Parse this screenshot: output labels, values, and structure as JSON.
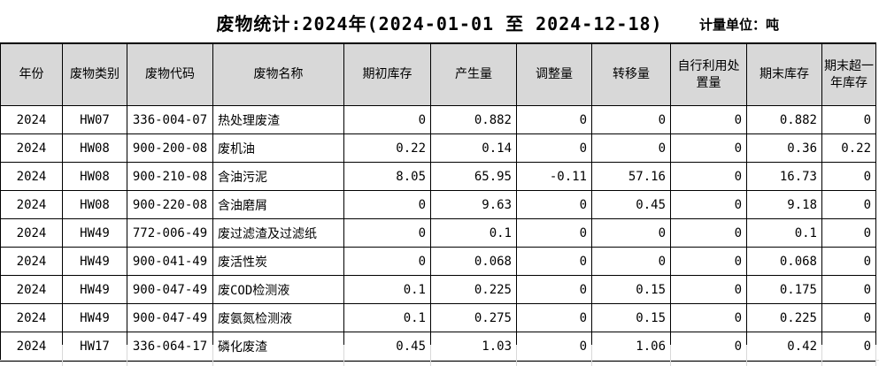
{
  "title": "废物统计:2024年(2024-01-01 至 2024-12-18)",
  "unit_label": "计量单位：吨",
  "table": {
    "columns": [
      "年份",
      "废物类别",
      "废物代码",
      "废物名称",
      "期初库存",
      "产生量",
      "调整量",
      "转移量",
      "自行利用处置量",
      "期末库存",
      "期末超一年库存"
    ],
    "rows": [
      [
        "2024",
        "HW07",
        "336-004-07",
        "热处理废渣",
        "0",
        "0.882",
        "0",
        "0",
        "0",
        "0.882",
        "0"
      ],
      [
        "2024",
        "HW08",
        "900-200-08",
        "废机油",
        "0.22",
        "0.14",
        "0",
        "0",
        "0",
        "0.36",
        "0.22"
      ],
      [
        "2024",
        "HW08",
        "900-210-08",
        "含油污泥",
        "8.05",
        "65.95",
        "-0.11",
        "57.16",
        "0",
        "16.73",
        "0"
      ],
      [
        "2024",
        "HW08",
        "900-220-08",
        "含油磨屑",
        "0",
        "9.63",
        "0",
        "0.45",
        "0",
        "9.18",
        "0"
      ],
      [
        "2024",
        "HW49",
        "772-006-49",
        "废过滤渣及过滤纸",
        "0",
        "0.1",
        "0",
        "0",
        "0",
        "0.1",
        "0"
      ],
      [
        "2024",
        "HW49",
        "900-041-49",
        "废活性炭",
        "0",
        "0.068",
        "0",
        "0",
        "0",
        "0.068",
        "0"
      ],
      [
        "2024",
        "HW49",
        "900-047-49",
        "废COD检测液",
        "0.1",
        "0.225",
        "0",
        "0.15",
        "0",
        "0.175",
        "0"
      ],
      [
        "2024",
        "HW49",
        "900-047-49",
        "废氨氮检测液",
        "0.1",
        "0.275",
        "0",
        "0.15",
        "0",
        "0.225",
        "0"
      ],
      [
        "2024",
        "HW17",
        "336-064-17",
        "磷化废渣",
        "0.45",
        "1.03",
        "0",
        "1.06",
        "0",
        "0.42",
        "0"
      ]
    ]
  },
  "colors": {
    "header_bg": "#d8d8d8",
    "border": "#000000",
    "gridline": "#d9d9d9"
  }
}
